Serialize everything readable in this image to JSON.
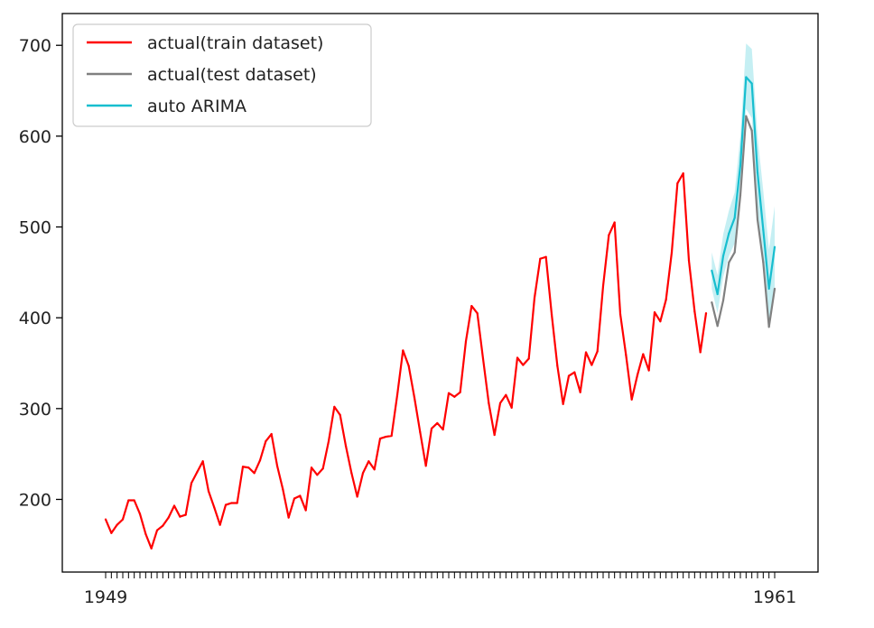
{
  "chart_data": {
    "type": "line",
    "title": "",
    "xlabel": "",
    "ylabel": "",
    "ylim": [
      120,
      735
    ],
    "yticks": [
      200,
      300,
      400,
      500,
      600,
      700
    ],
    "ytick_labels": [
      "200",
      "300",
      "400",
      "500",
      "600",
      "700"
    ],
    "grid": false,
    "legend_placement": "top-left",
    "x_tick_labels_visible": [
      "1949",
      "1961"
    ],
    "series": [
      {
        "name": "actual(train dataset)",
        "color": "#ff0000",
        "x_start": 0,
        "values": [
          178,
          163,
          172,
          178,
          199,
          199,
          184,
          162,
          146,
          166,
          171,
          180,
          193,
          181,
          183,
          218,
          230,
          242,
          209,
          191,
          172,
          194,
          196,
          196,
          236,
          235,
          229,
          243,
          264,
          272,
          237,
          211,
          180,
          201,
          204,
          188,
          235,
          227,
          234,
          264,
          302,
          293,
          259,
          229,
          203,
          229,
          242,
          233,
          267,
          269,
          270,
          315,
          364,
          347,
          312,
          274,
          237,
          278,
          284,
          277,
          317,
          313,
          318,
          374,
          413,
          405,
          355,
          306,
          271,
          306,
          315,
          301,
          356,
          348,
          355,
          422,
          465,
          467,
          404,
          347,
          305,
          336,
          340,
          318,
          362,
          348,
          363,
          435,
          491,
          505,
          404,
          359,
          310,
          337,
          360,
          342,
          406,
          396,
          420,
          472,
          548,
          559,
          463,
          407,
          362,
          405
        ]
      },
      {
        "name": "actual(test dataset)",
        "color": "#808080",
        "x_start": 106,
        "values": [
          417,
          391,
          419,
          461,
          472,
          535,
          622,
          606,
          508,
          461,
          390,
          432
        ]
      },
      {
        "name": "auto ARIMA",
        "color": "#17becf",
        "x_start": 106,
        "values": [
          452,
          426,
          468,
          493,
          510,
          568,
          665,
          658,
          560,
          497,
          432,
          478
        ],
        "conf_lower": [
          432,
          405,
          445,
          468,
          482,
          537,
          630,
          620,
          520,
          456,
          390,
          433
        ],
        "conf_upper": [
          472,
          447,
          492,
          518,
          538,
          600,
          702,
          696,
          600,
          540,
          475,
          523
        ]
      }
    ]
  }
}
